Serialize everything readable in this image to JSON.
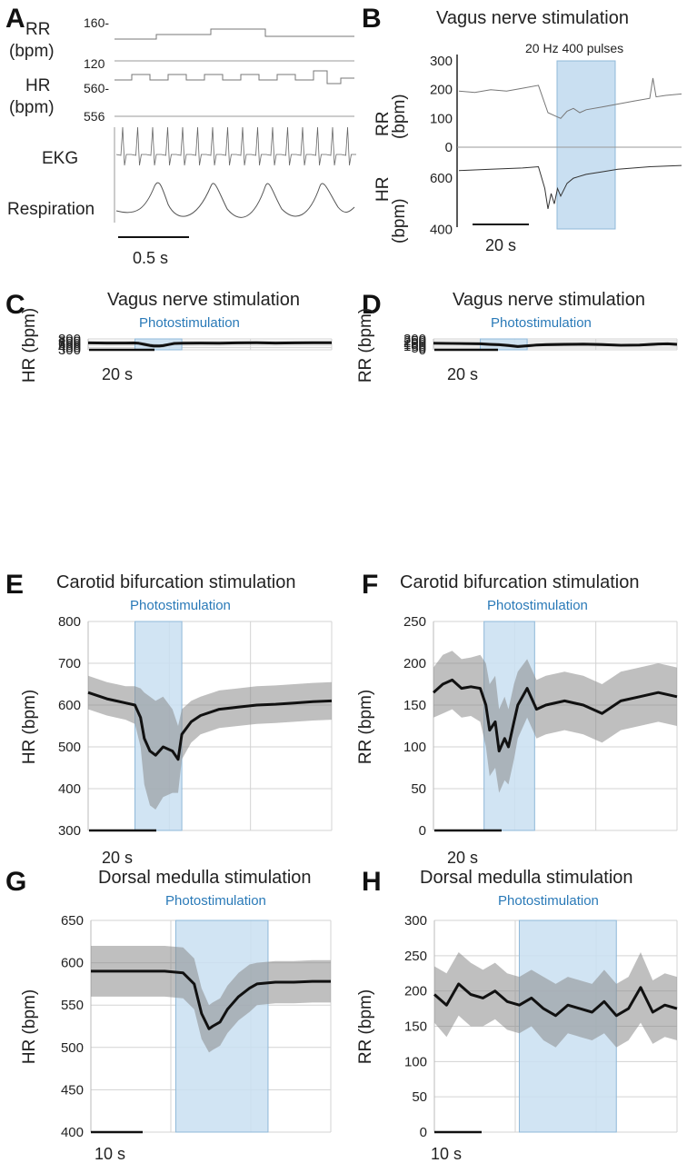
{
  "panel_a": {
    "label": "A",
    "rr_label": "RR",
    "rr_unit": "(bpm)",
    "rr_ticks": [
      "160-",
      "120"
    ],
    "hr_label": "HR",
    "hr_unit": "(bpm)",
    "hr_ticks": [
      "560-",
      "556"
    ],
    "ekg_label": "EKG",
    "resp_label": "Respiration",
    "scalebar": "0.5 s"
  },
  "panel_b": {
    "label": "B",
    "title": "Vagus nerve stimulation",
    "stim_label": "20 Hz 400 pulses",
    "rr_label": "RR",
    "rr_unit": "(bpm)",
    "hr_label": "HR",
    "hr_unit": "(bpm)",
    "scalebar": "20 s",
    "colors": {
      "shade": "#c9dff1",
      "shade_edge": "#8fb8d8"
    }
  },
  "chart_data": [
    {
      "id": "panel-b-rr",
      "type": "line",
      "ylabel": "RR (bpm)",
      "yticks": [
        300,
        200,
        100,
        0
      ],
      "ylim": [
        0,
        300
      ],
      "x": [
        0,
        5,
        10,
        15,
        20,
        25,
        28,
        30,
        32,
        34,
        36,
        38,
        40,
        45,
        50,
        55,
        60,
        61,
        62,
        65,
        70
      ],
      "values": [
        195,
        190,
        200,
        195,
        205,
        215,
        120,
        110,
        100,
        125,
        135,
        120,
        130,
        140,
        150,
        160,
        170,
        240,
        175,
        180,
        185
      ]
    },
    {
      "id": "panel-b-hr",
      "type": "line",
      "ylabel": "HR (bpm)",
      "yticks": [
        600,
        400
      ],
      "ylim": [
        380,
        700
      ],
      "x": [
        0,
        10,
        20,
        25,
        27,
        28,
        29,
        30,
        31,
        32,
        34,
        36,
        40,
        45,
        50,
        60,
        70
      ],
      "values": [
        630,
        635,
        640,
        645,
        560,
        480,
        540,
        500,
        560,
        530,
        580,
        600,
        615,
        625,
        635,
        645,
        650
      ]
    },
    {
      "id": "panel-c",
      "label": "C",
      "type": "line",
      "title": "Vagus nerve stimulation",
      "photo_label": "Photostimulation",
      "ylabel": "HR (bpm)",
      "yticks": [
        800,
        700,
        600,
        500,
        400,
        300
      ],
      "ylim": [
        300,
        800
      ],
      "scalebar": "20 s",
      "x": [
        0,
        10,
        20,
        25,
        27,
        30,
        33,
        35,
        38,
        40,
        43,
        46,
        50,
        60,
        70,
        80,
        90,
        100,
        110,
        120,
        130
      ],
      "values": [
        615,
        610,
        608,
        612,
        600,
        550,
        500,
        480,
        475,
        490,
        540,
        590,
        605,
        610,
        605,
        615,
        620,
        610,
        618,
        625,
        620
      ],
      "band": [
        50,
        50,
        48,
        50,
        60,
        80,
        85,
        85,
        80,
        75,
        60,
        50,
        45,
        45,
        45,
        50,
        50,
        50,
        50,
        50,
        50
      ],
      "stim": [
        25,
        50
      ]
    },
    {
      "id": "panel-d",
      "label": "D",
      "type": "line",
      "title": "Vagus nerve stimulation",
      "photo_label": "Photostimulation",
      "ylabel": "RR (bpm)",
      "yticks": [
        300,
        250,
        200,
        150,
        100,
        50,
        0
      ],
      "ylim": [
        0,
        300
      ],
      "scalebar": "20 s",
      "x": [
        0,
        10,
        20,
        25,
        30,
        35,
        40,
        45,
        50,
        55,
        60,
        70,
        80,
        90,
        100,
        110,
        120,
        125,
        130
      ],
      "values": [
        180,
        175,
        170,
        165,
        150,
        140,
        120,
        90,
        110,
        130,
        140,
        150,
        155,
        145,
        125,
        130,
        160,
        165,
        150
      ],
      "band": [
        30,
        35,
        35,
        40,
        40,
        40,
        45,
        40,
        40,
        40,
        40,
        40,
        35,
        35,
        35,
        35,
        30,
        30,
        30
      ],
      "stim": [
        25,
        50
      ]
    },
    {
      "id": "panel-e",
      "label": "E",
      "type": "line",
      "title": "Carotid bifurcation stimulation",
      "photo_label": "Photostimulation",
      "ylabel": "HR (bpm)",
      "yticks": [
        800,
        700,
        600,
        500,
        400,
        300
      ],
      "ylim": [
        300,
        800
      ],
      "scalebar": "20 s",
      "x": [
        0,
        10,
        20,
        25,
        28,
        30,
        33,
        36,
        40,
        45,
        48,
        50,
        55,
        60,
        70,
        80,
        90,
        100,
        110,
        120,
        130
      ],
      "values": [
        630,
        615,
        605,
        600,
        570,
        520,
        490,
        480,
        500,
        490,
        470,
        530,
        560,
        575,
        590,
        595,
        600,
        602,
        605,
        608,
        610
      ],
      "band": [
        40,
        40,
        40,
        45,
        70,
        110,
        130,
        130,
        120,
        100,
        80,
        60,
        50,
        45,
        45,
        45,
        45,
        45,
        45,
        45,
        45
      ],
      "stim": [
        25,
        50
      ]
    },
    {
      "id": "panel-f",
      "label": "F",
      "type": "line",
      "title": "Carotid bifurcation stimulation",
      "photo_label": "Photostimulation",
      "ylabel": "RR (bpm)",
      "yticks": [
        250,
        200,
        150,
        100,
        50,
        0
      ],
      "ylim": [
        0,
        250
      ],
      "scalebar": "20 s",
      "x": [
        0,
        5,
        10,
        15,
        20,
        25,
        28,
        30,
        33,
        35,
        38,
        40,
        43,
        45,
        50,
        55,
        60,
        70,
        80,
        90,
        100,
        110,
        120,
        130
      ],
      "values": [
        165,
        175,
        180,
        170,
        172,
        170,
        150,
        120,
        130,
        95,
        110,
        100,
        130,
        150,
        170,
        145,
        150,
        155,
        150,
        140,
        155,
        160,
        165,
        160
      ],
      "band": [
        30,
        35,
        35,
        35,
        35,
        40,
        50,
        55,
        55,
        50,
        50,
        45,
        45,
        40,
        35,
        35,
        35,
        35,
        35,
        35,
        35,
        35,
        35,
        35
      ],
      "stim": [
        27,
        54
      ]
    },
    {
      "id": "panel-g",
      "label": "G",
      "type": "line",
      "title": "Dorsal medulla stimulation",
      "photo_label": "Photostimulation",
      "ylabel": "HR (bpm)",
      "yticks": [
        650,
        600,
        550,
        500,
        450,
        400
      ],
      "ylim": [
        400,
        650
      ],
      "scalebar": "10 s",
      "x": [
        0,
        5,
        10,
        15,
        20,
        25,
        28,
        30,
        32,
        33,
        35,
        37,
        40,
        43,
        45,
        50,
        55,
        60,
        65
      ],
      "values": [
        590,
        590,
        590,
        590,
        590,
        588,
        575,
        540,
        522,
        525,
        530,
        545,
        560,
        570,
        575,
        577,
        577,
        578,
        578
      ],
      "band": [
        30,
        30,
        30,
        30,
        30,
        30,
        30,
        30,
        28,
        28,
        28,
        28,
        28,
        28,
        25,
        25,
        25,
        25,
        25
      ],
      "stim": [
        23,
        48
      ]
    },
    {
      "id": "panel-h",
      "label": "H",
      "type": "line",
      "title": "Dorsal medulla stimulation",
      "photo_label": "Photostimulation",
      "ylabel": "RR (bpm)",
      "yticks": [
        300,
        250,
        200,
        150,
        100,
        50,
        0
      ],
      "ylim": [
        0,
        300
      ],
      "scalebar": "10 s",
      "x": [
        0,
        3,
        6,
        9,
        12,
        15,
        18,
        21,
        24,
        27,
        30,
        33,
        36,
        39,
        42,
        45,
        48,
        51,
        54,
        57,
        60
      ],
      "values": [
        195,
        180,
        210,
        195,
        190,
        200,
        185,
        180,
        190,
        175,
        165,
        180,
        175,
        170,
        185,
        165,
        175,
        205,
        170,
        180,
        175
      ],
      "band": [
        40,
        45,
        45,
        45,
        40,
        40,
        40,
        40,
        40,
        45,
        45,
        40,
        40,
        40,
        45,
        45,
        45,
        50,
        45,
        45,
        45
      ],
      "stim": [
        21,
        45
      ]
    }
  ]
}
